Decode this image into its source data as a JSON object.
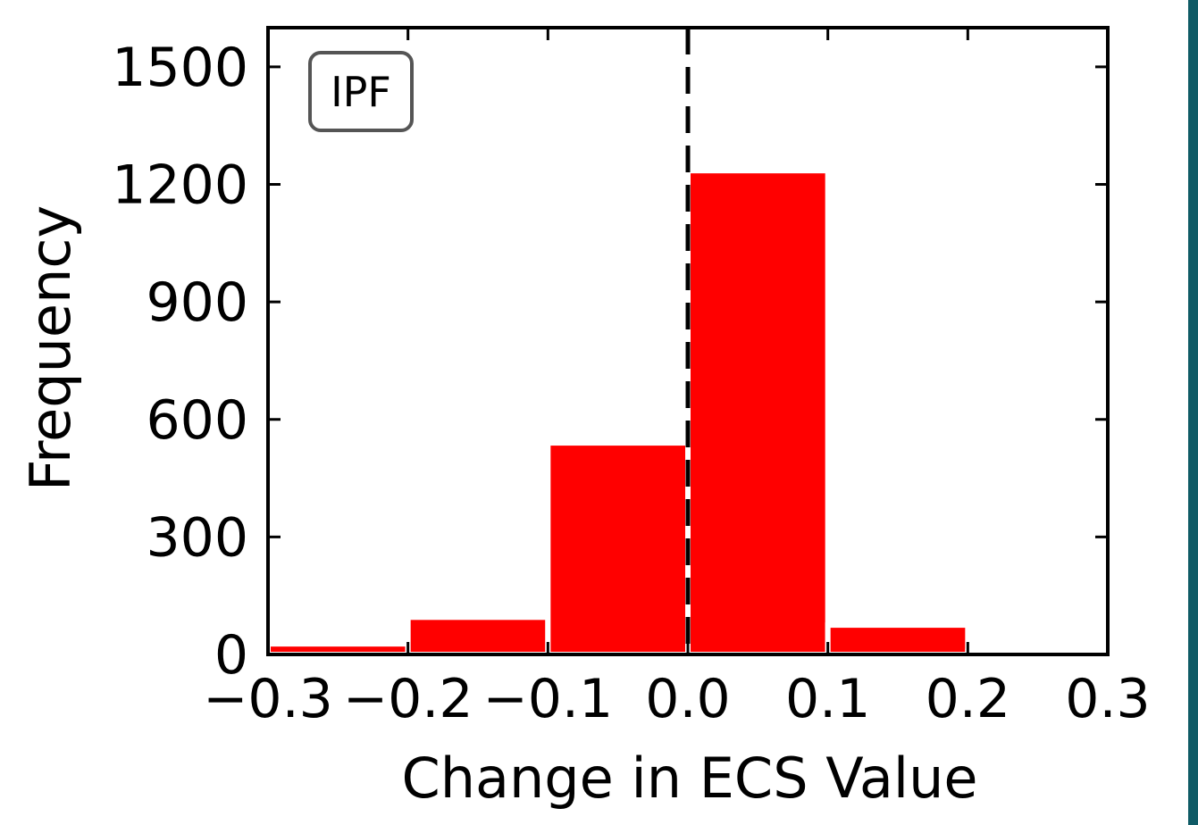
{
  "chart_data": {
    "type": "bar",
    "bin_edges": [
      -0.3,
      -0.2,
      -0.1,
      0.0,
      0.1,
      0.2,
      0.3
    ],
    "values": [
      27,
      95,
      540,
      1235,
      75,
      8
    ],
    "xlabel": "Change in ECS Value",
    "ylabel": "Frequency",
    "xlim": [
      -0.3,
      0.3
    ],
    "ylim": [
      0,
      1600
    ],
    "xticks": [
      -0.3,
      -0.2,
      -0.1,
      0.0,
      0.1,
      0.2,
      0.3
    ],
    "xtick_labels": [
      "−0.3",
      "−0.2",
      "−0.1",
      "0.0",
      "0.1",
      "0.2",
      "0.3"
    ],
    "yticks": [
      0,
      300,
      600,
      900,
      1200,
      1500
    ],
    "ytick_labels": [
      "0",
      "300",
      "600",
      "900",
      "1200",
      "1500"
    ],
    "annotation": "IPF",
    "reference_line_x": 0.0,
    "grid": false,
    "bar_color": "#ff0000",
    "edge_color": "#ffffff",
    "frame_color": "#000000",
    "annotation_box_color": "#555555",
    "right_edge_strip_color": "#0f5b66"
  }
}
